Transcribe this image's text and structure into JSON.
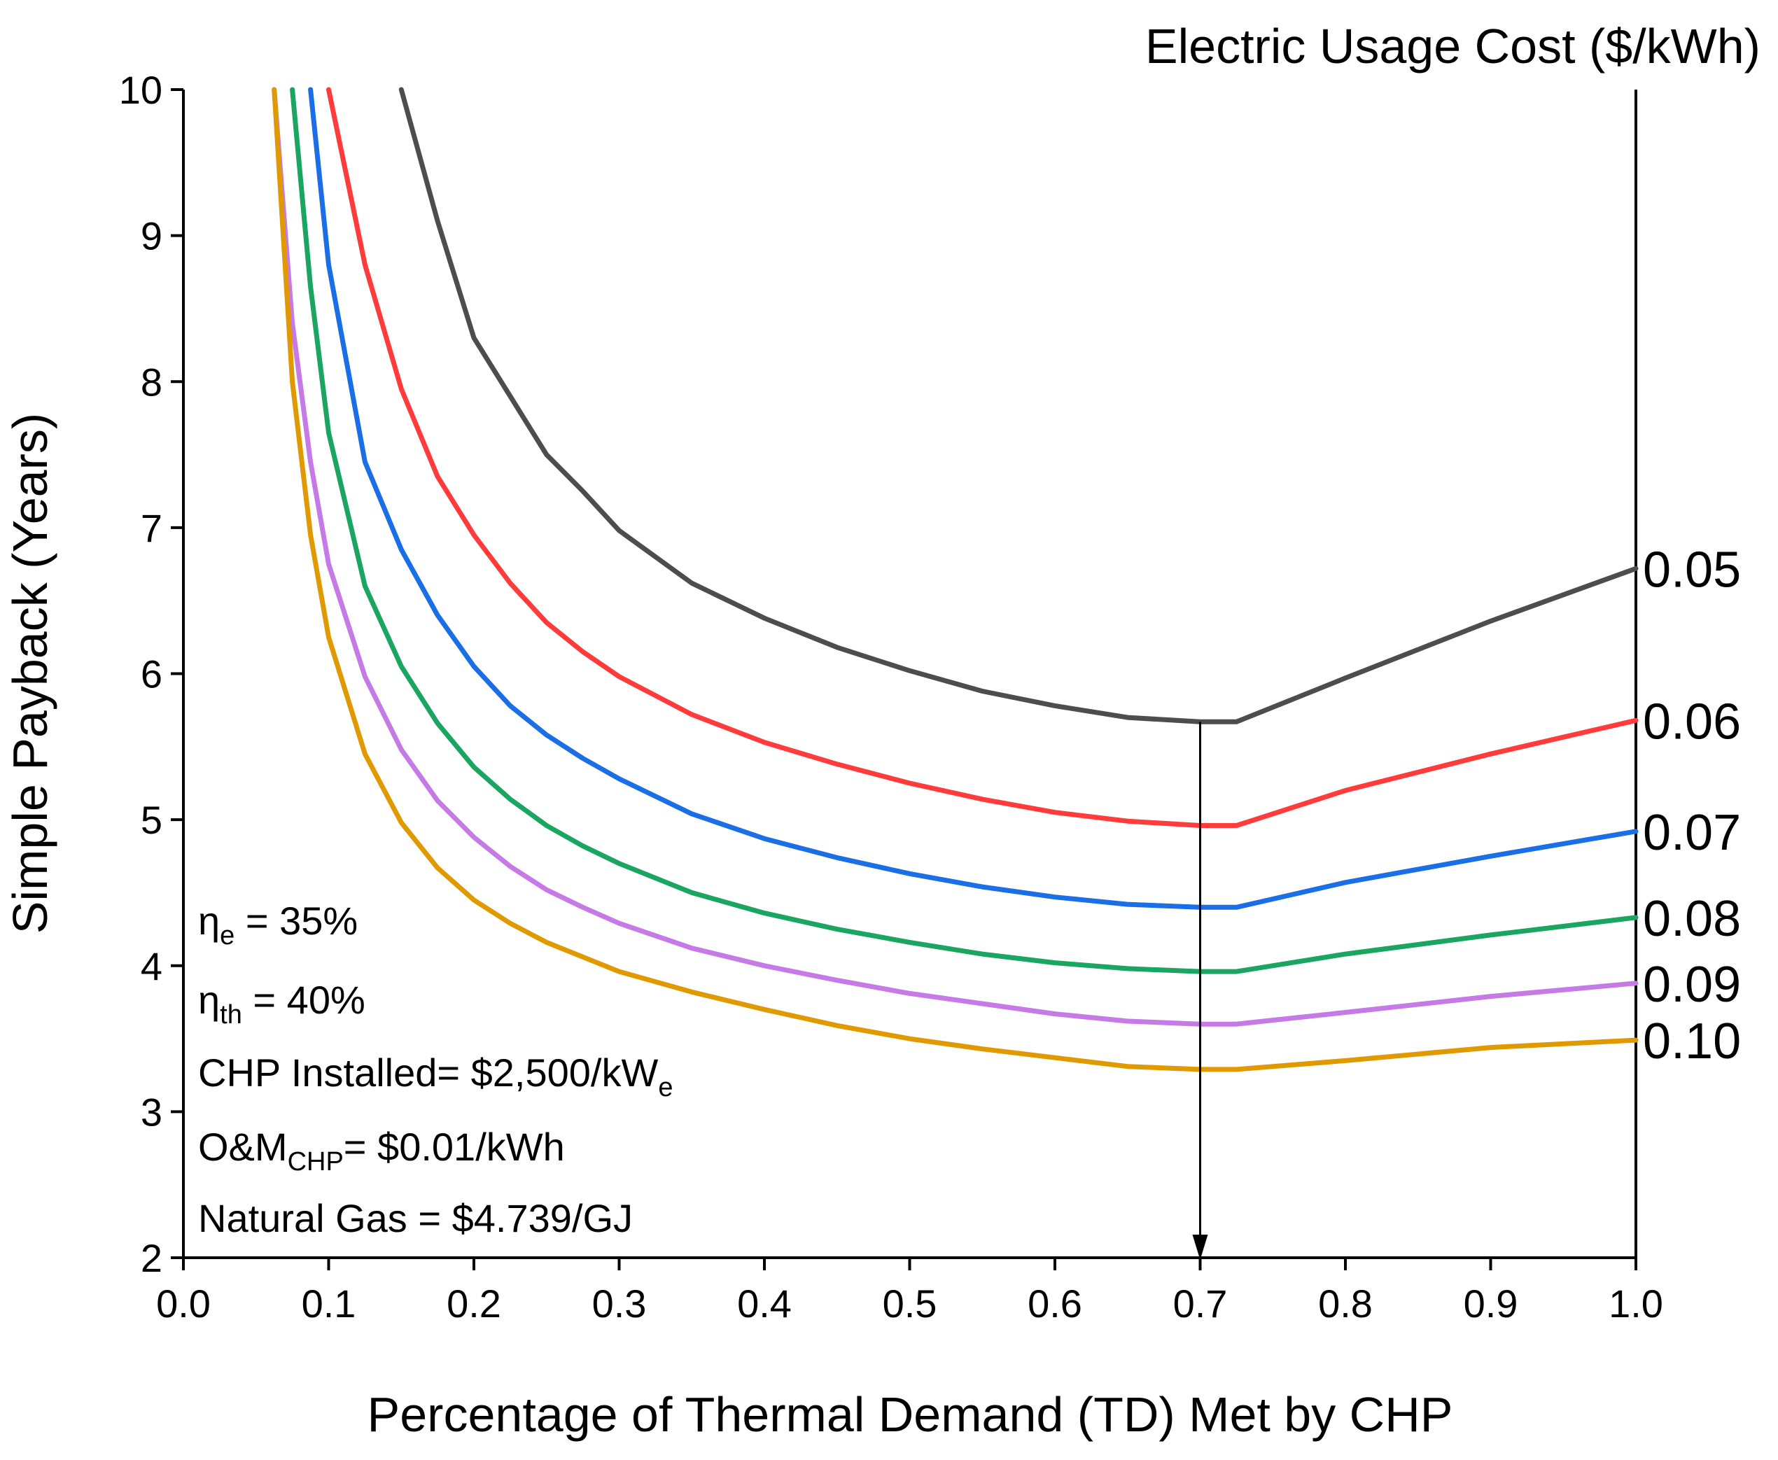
{
  "chart_data": {
    "type": "line",
    "title": "",
    "legend_title": "Electric Usage Cost ($/kWh)",
    "xlabel": "Percentage of Thermal Demand (TD) Met by CHP",
    "ylabel": "Simple Payback (Years)",
    "xlim": [
      0.0,
      1.0
    ],
    "ylim": [
      2,
      10
    ],
    "x_ticks": [
      "0.0",
      "0.1",
      "0.2",
      "0.3",
      "0.4",
      "0.5",
      "0.6",
      "0.7",
      "0.8",
      "0.9",
      "1.0"
    ],
    "y_ticks": [
      "2",
      "3",
      "4",
      "5",
      "6",
      "7",
      "8",
      "9",
      "10"
    ],
    "grid": false,
    "x": [
      0.0625,
      0.075,
      0.0875,
      0.1,
      0.125,
      0.15,
      0.175,
      0.2,
      0.225,
      0.25,
      0.275,
      0.3,
      0.35,
      0.4,
      0.45,
      0.5,
      0.55,
      0.6,
      0.65,
      0.7,
      0.725,
      0.8,
      0.9,
      1.0
    ],
    "series": [
      {
        "name": "0.05",
        "color": "#4d4d4d",
        "values": [
          null,
          null,
          null,
          null,
          null,
          10.0,
          9.1,
          8.3,
          7.9,
          7.5,
          7.25,
          6.98,
          6.62,
          6.38,
          6.18,
          6.02,
          5.88,
          5.78,
          5.7,
          5.67,
          5.67,
          5.97,
          6.36,
          6.72
        ]
      },
      {
        "name": "0.06",
        "color": "#ff3b3b",
        "values": [
          null,
          null,
          null,
          10.0,
          8.8,
          7.95,
          7.35,
          6.95,
          6.62,
          6.35,
          6.15,
          5.98,
          5.72,
          5.53,
          5.38,
          5.25,
          5.14,
          5.05,
          4.99,
          4.96,
          4.96,
          5.2,
          5.45,
          5.68
        ]
      },
      {
        "name": "0.07",
        "color": "#1a6ee6",
        "values": [
          null,
          null,
          10.0,
          8.8,
          7.45,
          6.85,
          6.4,
          6.05,
          5.78,
          5.58,
          5.42,
          5.28,
          5.04,
          4.87,
          4.74,
          4.63,
          4.54,
          4.47,
          4.42,
          4.4,
          4.4,
          4.57,
          4.75,
          4.92
        ]
      },
      {
        "name": "0.08",
        "color": "#1aa561",
        "values": [
          null,
          10.0,
          8.65,
          7.65,
          6.6,
          6.05,
          5.66,
          5.36,
          5.14,
          4.96,
          4.82,
          4.7,
          4.5,
          4.36,
          4.25,
          4.16,
          4.08,
          4.02,
          3.98,
          3.96,
          3.96,
          4.08,
          4.21,
          4.33
        ]
      },
      {
        "name": "0.09",
        "color": "#c57ae6",
        "values": [
          10.0,
          8.4,
          7.45,
          6.75,
          5.98,
          5.48,
          5.13,
          4.88,
          4.68,
          4.52,
          4.4,
          4.29,
          4.12,
          4.0,
          3.9,
          3.81,
          3.74,
          3.67,
          3.62,
          3.6,
          3.6,
          3.68,
          3.79,
          3.88
        ]
      },
      {
        "name": "0.10",
        "color": "#e09a00",
        "values": [
          10.0,
          8.0,
          6.95,
          6.25,
          5.45,
          4.98,
          4.67,
          4.45,
          4.29,
          4.16,
          4.06,
          3.96,
          3.82,
          3.7,
          3.59,
          3.5,
          3.43,
          3.37,
          3.31,
          3.29,
          3.29,
          3.35,
          3.44,
          3.49
        ]
      }
    ],
    "marker_line": {
      "x": 0.7,
      "from_y": 5.67,
      "to_y": 2.0,
      "color": "#000000"
    },
    "annotations": {
      "eta_e": {
        "symbol": "η",
        "sub": "e",
        "text": " = 35%"
      },
      "eta_th": {
        "symbol": "η",
        "sub": "th",
        "text": " = 40%"
      },
      "chp": {
        "text": "CHP Installed= $2,500/kW",
        "sub": "e"
      },
      "om": {
        "text": "O&M",
        "sub": "CHP",
        "text2": "= $0.01/kWh"
      },
      "gas": {
        "text": "Natural Gas = $4.739/GJ"
      }
    }
  }
}
